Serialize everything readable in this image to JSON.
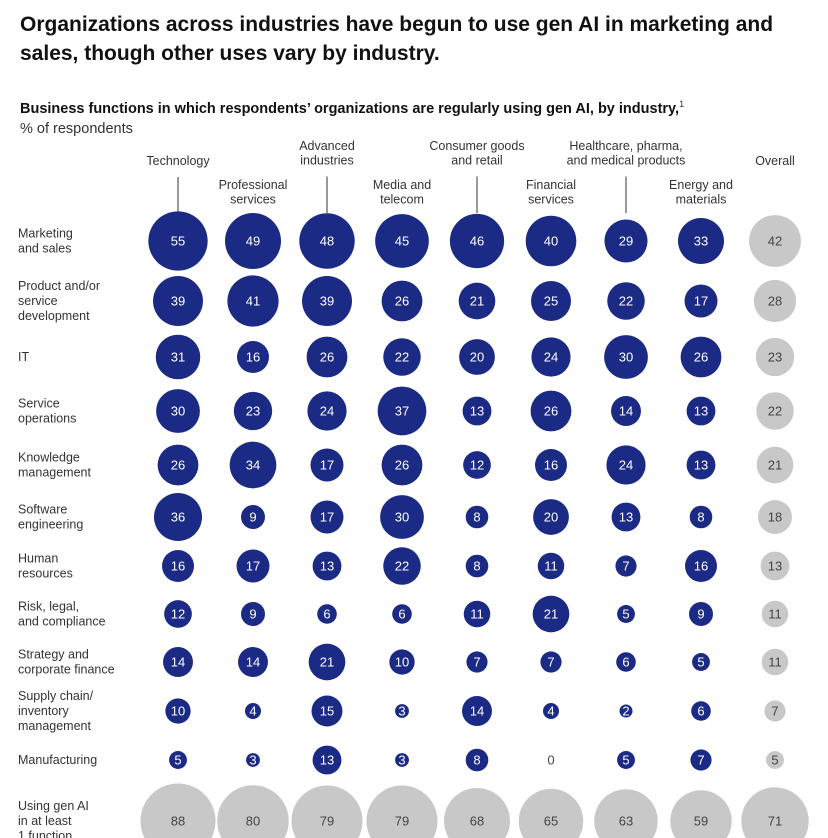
{
  "title": "Organizations across industries have begun to use gen AI in marketing and sales, though other uses vary by industry.",
  "subtitle_bold": "Business functions in which respondents’ organizations are regularly using gen AI, by industry,",
  "subtitle_footnote": "1",
  "subtitle_unit": "% of respondents",
  "colors": {
    "industry": "#1b2a85",
    "overall": "#c8c8c8",
    "total": "#c8c8c8",
    "text_light": "#ffffff",
    "text_dark": "#444444"
  },
  "chart_data": {
    "type": "bubble-matrix",
    "title": "Business functions in which respondents’ organizations are regularly using gen AI, by industry",
    "unit": "% of respondents",
    "columns": [
      {
        "name": "Technology",
        "label": [
          "Technology"
        ]
      },
      {
        "name": "Professional services",
        "label": [
          "Professional",
          "services"
        ]
      },
      {
        "name": "Advanced industries",
        "label": [
          "Advanced",
          "industries"
        ]
      },
      {
        "name": "Media and telecom",
        "label": [
          "Media and",
          "telecom"
        ]
      },
      {
        "name": "Consumer goods and retail",
        "label": [
          "Consumer goods",
          "and retail"
        ]
      },
      {
        "name": "Financial services",
        "label": [
          "Financial",
          "services"
        ]
      },
      {
        "name": "Healthcare, pharma, and medical products",
        "label": [
          "Healthcare, pharma,",
          "and medical products"
        ]
      },
      {
        "name": "Energy and materials",
        "label": [
          "Energy and",
          "materials"
        ]
      },
      {
        "name": "Overall",
        "label": [
          "Overall"
        ]
      }
    ],
    "rows": [
      {
        "name": "Marketing and sales",
        "label": [
          "Marketing",
          "and sales"
        ],
        "values": [
          55,
          49,
          48,
          45,
          46,
          40,
          29,
          33,
          42
        ]
      },
      {
        "name": "Product and/or service development",
        "label": [
          "Product and/or",
          "service",
          "development"
        ],
        "values": [
          39,
          41,
          39,
          26,
          21,
          25,
          22,
          17,
          28
        ]
      },
      {
        "name": "IT",
        "label": [
          "IT"
        ],
        "values": [
          31,
          16,
          26,
          22,
          20,
          24,
          30,
          26,
          23
        ]
      },
      {
        "name": "Service operations",
        "label": [
          "Service",
          "operations"
        ],
        "values": [
          30,
          23,
          24,
          37,
          13,
          26,
          14,
          13,
          22
        ]
      },
      {
        "name": "Knowledge management",
        "label": [
          "Knowledge",
          "management"
        ],
        "values": [
          26,
          34,
          17,
          26,
          12,
          16,
          24,
          13,
          21
        ]
      },
      {
        "name": "Software engineering",
        "label": [
          "Software",
          "engineering"
        ],
        "values": [
          36,
          9,
          17,
          30,
          8,
          20,
          13,
          8,
          18
        ]
      },
      {
        "name": "Human resources",
        "label": [
          "Human",
          "resources"
        ],
        "values": [
          16,
          17,
          13,
          22,
          8,
          11,
          7,
          16,
          13
        ]
      },
      {
        "name": "Risk, legal, and compliance",
        "label": [
          "Risk, legal,",
          "and compliance"
        ],
        "values": [
          12,
          9,
          6,
          6,
          11,
          21,
          5,
          9,
          11
        ]
      },
      {
        "name": "Strategy and corporate finance",
        "label": [
          "Strategy and",
          "corporate finance"
        ],
        "values": [
          14,
          14,
          21,
          10,
          7,
          7,
          6,
          5,
          11
        ]
      },
      {
        "name": "Supply chain/inventory management",
        "label": [
          "Supply chain/",
          "inventory",
          "management"
        ],
        "values": [
          10,
          4,
          15,
          3,
          14,
          4,
          2,
          6,
          7
        ]
      },
      {
        "name": "Manufacturing",
        "label": [
          "Manufacturing"
        ],
        "values": [
          5,
          3,
          13,
          3,
          8,
          0,
          5,
          7,
          5
        ]
      },
      {
        "name": "Using gen AI in at least 1 function",
        "label": [
          "Using gen AI",
          "in at least",
          "1 function"
        ],
        "values": [
          88,
          80,
          79,
          79,
          68,
          65,
          63,
          59,
          71
        ],
        "total": true
      }
    ]
  }
}
